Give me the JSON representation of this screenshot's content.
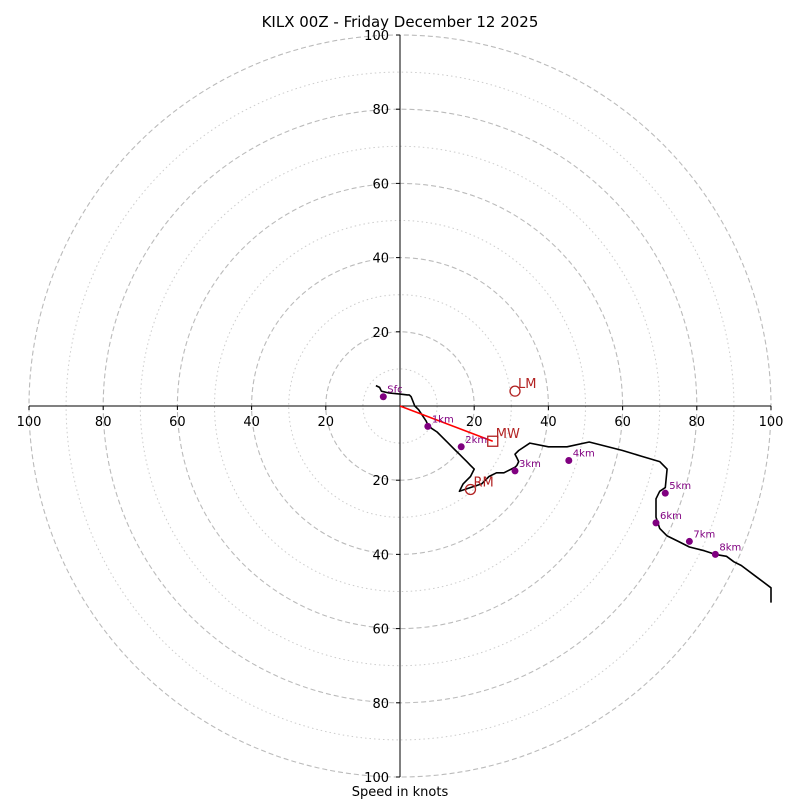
{
  "chart_data": {
    "type": "hodograph",
    "title": "KILX 00Z - Friday December 12 2025",
    "xlabel": "Speed in knots",
    "units": "kt",
    "xlim": [
      -100,
      100
    ],
    "ylim": [
      -100,
      100
    ],
    "x_ticks": [
      {
        "value": -100,
        "label": "100"
      },
      {
        "value": -80,
        "label": "80"
      },
      {
        "value": -60,
        "label": "60"
      },
      {
        "value": -40,
        "label": "40"
      },
      {
        "value": -20,
        "label": "20"
      },
      {
        "value": 20,
        "label": "20"
      },
      {
        "value": 40,
        "label": "40"
      },
      {
        "value": 60,
        "label": "60"
      },
      {
        "value": 80,
        "label": "80"
      },
      {
        "value": 100,
        "label": "100"
      }
    ],
    "y_ticks": [
      {
        "value": 100,
        "label": "100"
      },
      {
        "value": 80,
        "label": "80"
      },
      {
        "value": 60,
        "label": "60"
      },
      {
        "value": 40,
        "label": "40"
      },
      {
        "value": 20,
        "label": "20"
      },
      {
        "value": -20,
        "label": "20"
      },
      {
        "value": -40,
        "label": "40"
      },
      {
        "value": -60,
        "label": "60"
      },
      {
        "value": -80,
        "label": "80"
      },
      {
        "value": -100,
        "label": "100"
      }
    ],
    "rings_major": [
      20,
      40,
      60,
      80,
      100
    ],
    "rings_minor": [
      10,
      30,
      50,
      70,
      90
    ],
    "colors": {
      "hodo_line": "#000000",
      "shear_line": "#ff0000",
      "height_marker": "#800080",
      "motion_marker": "#b22222",
      "ring_major": "#bbbbbb",
      "ring_minor": "#cccccc"
    },
    "hodograph": {
      "u": [
        -6.5,
        -5.5,
        -5,
        -3,
        0,
        2,
        2.5,
        3,
        4,
        5,
        6,
        7,
        7.5,
        8.5,
        10,
        11,
        13,
        14,
        15,
        16,
        17,
        18,
        19,
        20,
        19,
        18,
        17,
        16,
        22,
        23,
        24,
        26,
        28,
        29,
        30,
        31,
        31.5,
        32,
        31.5,
        31,
        32,
        35,
        40,
        45,
        51,
        60,
        65,
        70,
        72,
        71.5,
        70,
        69,
        69,
        70,
        72,
        75,
        78,
        82,
        85,
        88,
        90,
        92,
        96,
        100,
        104
      ],
      "v": [
        5.5,
        5,
        4,
        3.5,
        3.2,
        3,
        3,
        2.5,
        0,
        -1,
        -2.5,
        -4,
        -5,
        -6,
        -7,
        -8,
        -10,
        -11,
        -12,
        -13,
        -14,
        -15,
        -16,
        -17,
        -19,
        -20,
        -21,
        -23,
        -21,
        -20,
        -19,
        -18,
        -18,
        -17.5,
        -17,
        -16.5,
        -16,
        -15,
        -14,
        -13,
        -12,
        -10,
        -11,
        -11,
        -9.7,
        -12,
        -13.5,
        -15,
        -17,
        -22,
        -23,
        -25,
        -30,
        -33,
        -35,
        -36.5,
        -38,
        -39,
        -40,
        -40.5,
        -42,
        -43,
        -46,
        -49,
        -53
      ]
    },
    "height_markers": [
      {
        "label": "Sfc",
        "u": -4.5,
        "v": 2.5
      },
      {
        "label": "1km",
        "u": 7.5,
        "v": -5.5
      },
      {
        "label": "2km",
        "u": 16.5,
        "v": -11
      },
      {
        "label": "3km",
        "u": 31,
        "v": -17.5
      },
      {
        "label": "4km",
        "u": 45.5,
        "v": -14.7
      },
      {
        "label": "5km",
        "u": 71.5,
        "v": -23.5
      },
      {
        "label": "6km",
        "u": 69,
        "v": -31.5
      },
      {
        "label": "7km",
        "u": 78,
        "v": -36.5
      },
      {
        "label": "8km",
        "u": 85,
        "v": -40
      }
    ],
    "storm_motions": [
      {
        "label": "LM",
        "u": 31,
        "v": 4,
        "marker": "circle"
      },
      {
        "label": "MW",
        "u": 25,
        "v": -9.5,
        "marker": "square"
      },
      {
        "label": "RM",
        "u": 19,
        "v": -22.5,
        "marker": "circle"
      }
    ],
    "shear_vector": {
      "from": {
        "u": 0,
        "v": 0
      },
      "to": {
        "u": 25,
        "v": -9.5
      }
    }
  }
}
